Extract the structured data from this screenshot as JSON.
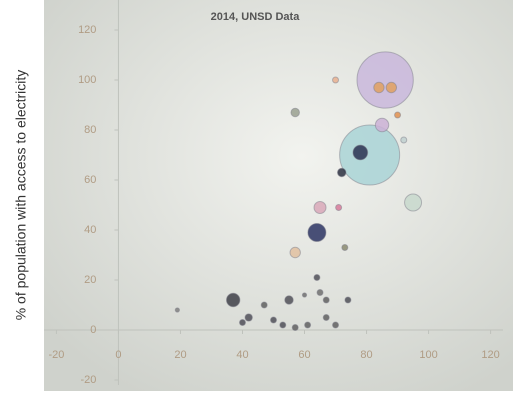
{
  "chart_data": {
    "type": "bubble",
    "title": "2014, UNSD Data",
    "y_label": "% of population with access to electricity",
    "x": [
      86,
      84,
      88,
      81,
      78,
      95,
      57,
      70,
      65,
      71,
      64,
      57,
      73,
      72,
      85,
      90,
      92,
      37,
      40,
      42,
      47,
      50,
      55,
      57,
      61,
      64,
      65,
      67,
      70,
      74,
      19,
      67,
      53,
      60
    ],
    "values": [
      100,
      97,
      97,
      70,
      71,
      51,
      87,
      100,
      49,
      49,
      39,
      31,
      33,
      63,
      82,
      86,
      76,
      12,
      3,
      5,
      10,
      4,
      12,
      1,
      2,
      21,
      15,
      12,
      2,
      12,
      8,
      5,
      2,
      14
    ],
    "sizes": [
      88,
      3,
      3,
      100,
      6,
      8,
      2,
      1,
      4,
      1,
      9,
      3,
      1,
      2,
      5,
      1,
      1,
      5,
      1,
      1.5,
      1,
      1,
      2,
      1,
      1,
      1,
      1,
      1,
      1,
      1,
      0.5,
      1,
      1,
      0.5
    ],
    "colors": [
      "#c9b7dc",
      "#e0a060",
      "#e0a060",
      "#a9d4d6",
      "#2a3150",
      "#c8d8cc",
      "#9aa090",
      "#e8b090",
      "#d9a8b8",
      "#d77a9a",
      "#2b3463",
      "#e0c0a0",
      "#8a8a70",
      "#2a2f40",
      "#cbb2d6",
      "#e09050",
      "#c0d0d0",
      "#404048",
      "#505058",
      "#505058",
      "#606060",
      "#505058",
      "#505058",
      "#606060",
      "#606060",
      "#505058",
      "#707070",
      "#606060",
      "#606060",
      "#505058",
      "#808080",
      "#606060",
      "#505058",
      "#707070"
    ],
    "xlim": [
      -24,
      124
    ],
    "ylim": [
      -22,
      132
    ],
    "xticks": [
      -20,
      0,
      20,
      40,
      60,
      80,
      100,
      120
    ],
    "yticks": [
      -20,
      0,
      20,
      40,
      60,
      80,
      100,
      120
    ]
  }
}
